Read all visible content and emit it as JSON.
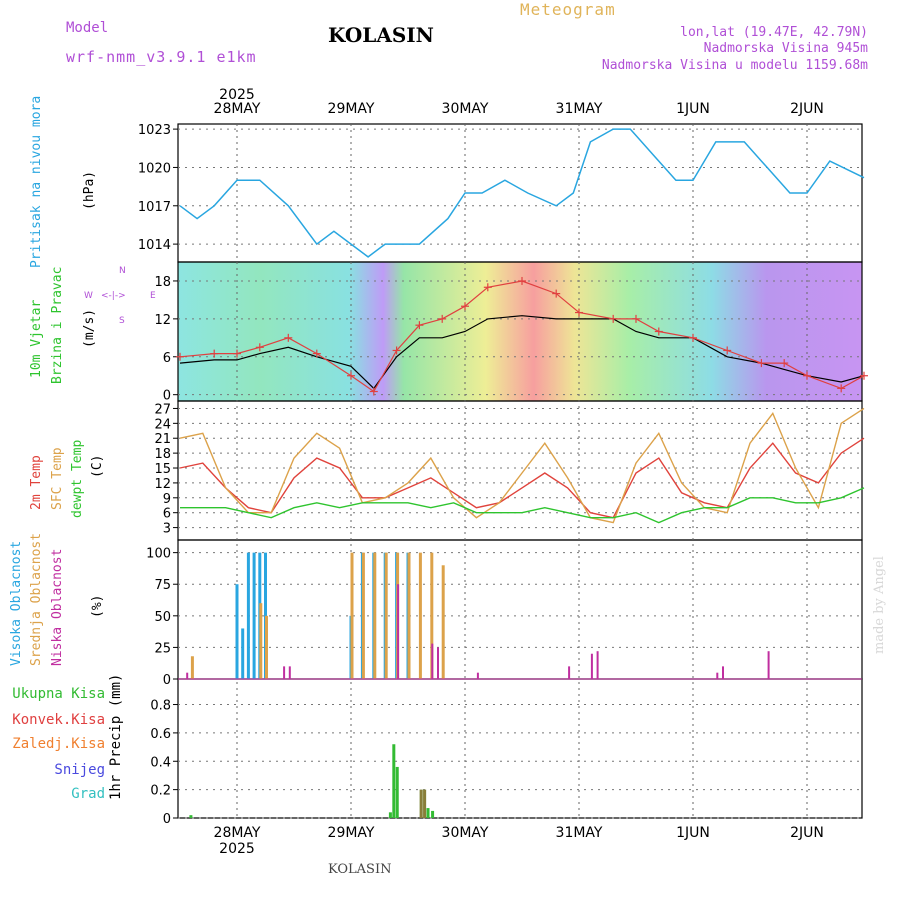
{
  "header": {
    "model_label": "Model",
    "model_name": "wrf-nmm_v3.9.1 e1km",
    "title": "KOLASIN",
    "meteogram": "Meteogram",
    "lonlat": "lon,lat (19.47E, 42.79N)",
    "altitude": "Nadmorska Visina 945m",
    "model_altitude": "Nadmorska Visina u modelu 1159.68m"
  },
  "footer": {
    "station": "KOLASIN",
    "credit": "made by Angel"
  },
  "axis": {
    "year": "2025",
    "dates": [
      "28MAY",
      "29MAY",
      "30MAY",
      "31MAY",
      "1JUN",
      "2JUN"
    ]
  },
  "labels": {
    "pressure": [
      "Pritisak na nivou mora",
      "(hPa)"
    ],
    "wind": [
      "10m Vjetar",
      "Brzina i Pravac",
      "(m/s)"
    ],
    "compass": [
      "W",
      "<-|->",
      "E",
      "N",
      "S"
    ],
    "temp": [
      "2m Temp",
      "SFC Temp",
      "dewpt Temp",
      "(C)"
    ],
    "cloud": [
      "Visoka Oblacnost",
      "Srednja Oblacnost",
      "Niska Oblacnost",
      "(%)"
    ],
    "precip_legend": [
      "Ukupna Kisa",
      "Konvek.Kisa",
      "Zaledj.Kisa",
      "Snijeg",
      "Grad"
    ],
    "precip_unit": "1hr Precip (mm)"
  },
  "colors": {
    "pressure": "#29a6e0",
    "temp2m": "#e0433c",
    "tempsfc": "#dca24a",
    "dewpt": "#2ec42e",
    "cloud_high": "#29a6e0",
    "cloud_mid": "#dca24a",
    "cloud_low": "#c02ea0",
    "precip_total": "#33bb33",
    "precip_conv": "#e04040",
    "precip_frz": "#f08030",
    "precip_snow": "#4a4adf",
    "precip_hail": "#33c0c0"
  },
  "chart_data": [
    {
      "type": "line",
      "panel": "pressure",
      "x": [
        -0.5,
        -0.35,
        -0.2,
        0.0,
        0.2,
        0.45,
        0.7,
        0.85,
        1.0,
        1.15,
        1.3,
        1.6,
        1.85,
        2.0,
        2.15,
        2.35,
        2.55,
        2.8,
        2.95,
        3.1,
        3.3,
        3.45,
        3.65,
        3.85,
        4.0,
        4.2,
        4.45,
        4.65,
        4.85,
        5.0,
        5.2,
        5.5
      ],
      "y": [
        1017,
        1016,
        1017,
        1019,
        1019,
        1017,
        1014,
        1015,
        1014,
        1013,
        1014,
        1014,
        1016,
        1018,
        1018,
        1019,
        1018,
        1017,
        1018,
        1022,
        1023,
        1023,
        1021,
        1019,
        1019,
        1022,
        1022,
        1020,
        1018,
        1018,
        1020.5,
        1019.2
      ],
      "ylim": [
        1012.6,
        1023.4
      ],
      "yticks": [
        1014,
        1017,
        1020,
        1023
      ]
    },
    {
      "type": "line",
      "panel": "wind",
      "series": [
        {
          "name": "speed",
          "x": [
            -0.5,
            -0.2,
            0.0,
            0.2,
            0.45,
            0.7,
            1.0,
            1.2,
            1.4,
            1.6,
            1.8,
            2.0,
            2.2,
            2.5,
            2.8,
            3.0,
            3.3,
            3.5,
            3.7,
            4.0,
            4.3,
            4.6,
            4.8,
            5.0,
            5.3,
            5.5
          ],
          "y": [
            5,
            5.5,
            5.5,
            6.5,
            7.5,
            6,
            4.5,
            1,
            6,
            9,
            9,
            10,
            12,
            12.5,
            12,
            12,
            12,
            10,
            9,
            9,
            6,
            5,
            4,
            3,
            2,
            3
          ]
        },
        {
          "name": "gust",
          "x": [
            -0.5,
            -0.2,
            0.0,
            0.2,
            0.45,
            0.7,
            1.0,
            1.2,
            1.4,
            1.6,
            1.8,
            2.0,
            2.2,
            2.5,
            2.8,
            3.0,
            3.3,
            3.5,
            3.7,
            4.0,
            4.3,
            4.6,
            4.8,
            5.0,
            5.3,
            5.5
          ],
          "y": [
            6,
            6.5,
            6.5,
            7.5,
            9,
            6.5,
            3,
            0.5,
            7,
            11,
            12,
            14,
            17,
            18,
            16,
            13,
            12,
            12,
            10,
            9,
            7,
            5,
            5,
            3,
            1,
            3
          ]
        }
      ],
      "ylim": [
        -1,
        21
      ],
      "yticks": [
        0,
        6,
        12,
        18
      ]
    },
    {
      "type": "line",
      "panel": "temperature",
      "x": [
        -0.5,
        -0.3,
        -0.1,
        0.1,
        0.3,
        0.5,
        0.7,
        0.9,
        1.1,
        1.3,
        1.5,
        1.7,
        1.9,
        2.1,
        2.3,
        2.5,
        2.7,
        2.9,
        3.1,
        3.3,
        3.5,
        3.7,
        3.9,
        4.1,
        4.3,
        4.5,
        4.7,
        4.9,
        5.1,
        5.3,
        5.5
      ],
      "series": [
        {
          "name": "2m Temp",
          "y": [
            15,
            16,
            11,
            7,
            6,
            13,
            17,
            15,
            9,
            9,
            11,
            13,
            10,
            7,
            8,
            11,
            14,
            11,
            6,
            5,
            14,
            17,
            10,
            8,
            7,
            15,
            20,
            14,
            12,
            18,
            21
          ]
        },
        {
          "name": "SFC Temp",
          "y": [
            21,
            22,
            11,
            6,
            6,
            17,
            22,
            19,
            8,
            9,
            12,
            17,
            9,
            5,
            8,
            14,
            20,
            13,
            5,
            4,
            16,
            22,
            12,
            7,
            6,
            20,
            26,
            15,
            7,
            24,
            27
          ]
        },
        {
          "name": "dewpt Temp",
          "y": [
            7,
            7,
            7,
            6,
            5,
            7,
            8,
            7,
            8,
            8,
            8,
            7,
            8,
            6,
            6,
            6,
            7,
            6,
            5,
            5,
            6,
            4,
            6,
            7,
            7,
            9,
            9,
            8,
            8,
            9,
            11
          ]
        }
      ],
      "ylim": [
        0.5,
        28.5
      ],
      "yticks": [
        3,
        6,
        9,
        12,
        15,
        18,
        21,
        24,
        27
      ]
    },
    {
      "type": "bar",
      "panel": "cloud",
      "series": [
        {
          "name": "Visoka Oblacnost",
          "x": [
            0.0,
            0.05,
            0.1,
            0.15,
            0.2,
            0.25,
            1.0,
            1.1,
            1.2,
            1.3,
            1.4,
            1.5
          ],
          "y": [
            75,
            40,
            100,
            100,
            100,
            100,
            50,
            100,
            100,
            100,
            100,
            100
          ]
        },
        {
          "name": "Srednja Oblacnost",
          "x": [
            -0.4,
            0.2,
            0.25,
            1.0,
            1.1,
            1.2,
            1.3,
            1.4,
            1.5,
            1.6,
            1.7,
            1.8
          ],
          "y": [
            18,
            60,
            50,
            100,
            100,
            100,
            100,
            100,
            100,
            100,
            100,
            90
          ]
        },
        {
          "name": "Niska Oblacnost",
          "x": [
            -0.45,
            0.4,
            0.45,
            1.4,
            1.7,
            1.75,
            2.1,
            2.9,
            3.1,
            3.15,
            4.2,
            4.25,
            4.65
          ],
          "y": [
            5,
            10,
            10,
            75,
            28,
            25,
            5,
            10,
            20,
            22,
            5,
            10,
            22
          ]
        }
      ],
      "ylim": [
        0,
        110
      ],
      "yticks": [
        0,
        25,
        50,
        75,
        100
      ]
    },
    {
      "type": "bar",
      "panel": "precip",
      "series": [
        {
          "name": "Ukupna Kisa",
          "x": [
            -0.4,
            1.35,
            1.38,
            1.41,
            1.62,
            1.65,
            1.68,
            1.72
          ],
          "y": [
            0.02,
            0.04,
            0.52,
            0.36,
            0.2,
            0.2,
            0.07,
            0.05
          ]
        },
        {
          "name": "Konvek.Kisa",
          "x": [
            1.62,
            1.65
          ],
          "y": [
            0.2,
            0.2
          ]
        }
      ],
      "ylim": [
        0,
        0.98
      ],
      "yticks": [
        0,
        0.2,
        0.4,
        0.6,
        0.8
      ]
    }
  ]
}
